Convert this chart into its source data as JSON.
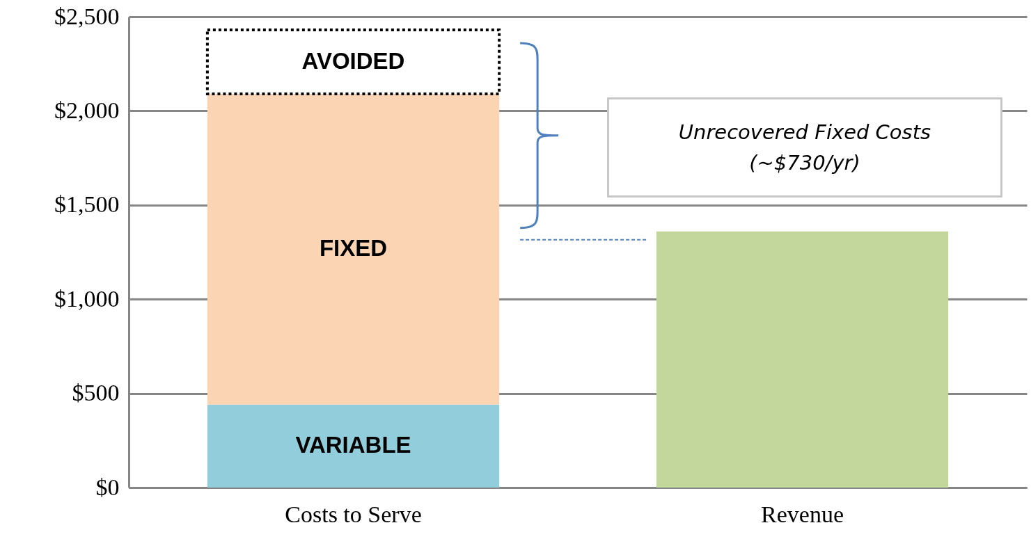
{
  "chart_data": {
    "type": "bar",
    "stacked": true,
    "categories": [
      "Costs to Serve",
      "Revenue"
    ],
    "series": [
      {
        "name": "VARIABLE",
        "color": "#92cddc",
        "values": [
          440,
          null
        ]
      },
      {
        "name": "FIXED",
        "color": "#fbd4b4",
        "values": [
          1650,
          null
        ]
      },
      {
        "name": "AVOIDED",
        "color": "#ffffff",
        "line_style": "dotted",
        "values": [
          340,
          null
        ]
      },
      {
        "color": "#c3d69b",
        "values": [
          null,
          1360
        ]
      }
    ],
    "ylim": [
      0,
      2500
    ],
    "yticks": [
      {
        "value": 0,
        "label": "$0"
      },
      {
        "value": 500,
        "label": "$500"
      },
      {
        "value": 1000,
        "label": "$1,000"
      },
      {
        "value": 1500,
        "label": "$1,500"
      },
      {
        "value": 2000,
        "label": "$2,000"
      },
      {
        "value": 2500,
        "label": "$2,500"
      }
    ],
    "grid": "y",
    "annotations": [
      "Unrecovered Fixed Costs",
      "(~$730/yr)"
    ]
  }
}
